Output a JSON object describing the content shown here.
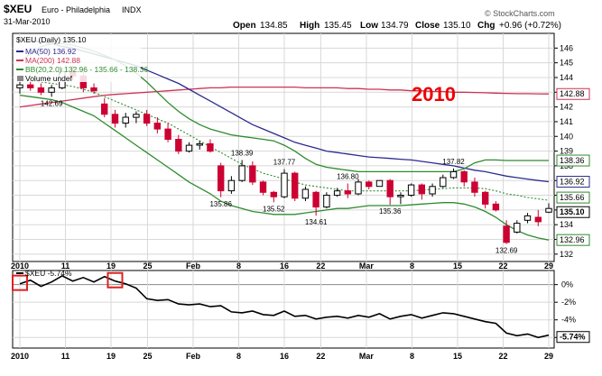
{
  "header": {
    "symbol": "$XEU",
    "name": "Euro - Philadelphia",
    "exchange": "INDX",
    "date": "31-Mar-2010",
    "open_label": "Open",
    "open": "134.85",
    "high_label": "High",
    "high": "135.45",
    "low_label": "Low",
    "low": "134.79",
    "close_label": "Close",
    "close": "135.10",
    "chg_label": "Chg",
    "chg": "+0.96 (+0.72%)",
    "watermark": "© StockCharts.com"
  },
  "legend": {
    "main": "$XEU (Daily) 135.10",
    "ma50": "MA(50) 136.92",
    "ma200": "MA(200) 142.88",
    "bb": "BB(20,2.0) 132.96 - 135.66 - 138.36",
    "volume": "Volume undef"
  },
  "perf_legend": "$XEU -5.74%",
  "annotation_year": "2010",
  "colors": {
    "up": "#000000",
    "down": "#cc0033",
    "ma50": "#2b2b8f",
    "ma200": "#cc3355",
    "bb": "#2e8b2e",
    "highlight": "#dd2222",
    "year": "#ee0000"
  },
  "chart_data": [
    {
      "type": "candlestick",
      "title": "$XEU Euro - Philadelphia INDX",
      "ylim": [
        131.5,
        147
      ],
      "y_ticks": [
        "146",
        "145",
        "144",
        "143",
        "142",
        "141",
        "140",
        "139",
        "138",
        "137",
        "136",
        "135",
        "134",
        "133",
        "132"
      ],
      "x_ticks": [
        "2010",
        "11",
        "19",
        "25",
        "Feb",
        "8",
        "16",
        "22",
        "Mar",
        "8",
        "15",
        "22",
        "29"
      ],
      "right_tags": [
        {
          "label": "142.88",
          "value": 142.88,
          "series": "ma200"
        },
        {
          "label": "138.36",
          "value": 138.36,
          "series": "bb"
        },
        {
          "label": "136.92",
          "value": 136.92,
          "series": "ma50"
        },
        {
          "label": "135.66",
          "value": 135.66,
          "series": "bb"
        },
        {
          "label": "135.10",
          "value": 135.1,
          "series": "price"
        },
        {
          "label": "132.96",
          "value": 132.96,
          "series": "bb"
        }
      ],
      "annotations": [
        {
          "label": "142.69",
          "index": 3,
          "value": 142.69,
          "pos": "below"
        },
        {
          "label": "138.39",
          "index": 21,
          "value": 138.39,
          "pos": "above"
        },
        {
          "label": "137.77",
          "index": 25,
          "value": 137.77,
          "pos": "above"
        },
        {
          "label": "135.86",
          "index": 19,
          "value": 135.86,
          "pos": "below"
        },
        {
          "label": "135.52",
          "index": 24,
          "value": 135.52,
          "pos": "below"
        },
        {
          "label": "136.80",
          "index": 31,
          "value": 136.8,
          "pos": "above"
        },
        {
          "label": "134.61",
          "index": 28,
          "value": 134.61,
          "pos": "below"
        },
        {
          "label": "135.36",
          "index": 35,
          "value": 135.36,
          "pos": "below"
        },
        {
          "label": "137.82",
          "index": 41,
          "value": 137.82,
          "pos": "above"
        },
        {
          "label": "132.69",
          "index": 46,
          "value": 132.69,
          "pos": "below"
        }
      ],
      "candles": [
        [
          143.3,
          143.8,
          142.9,
          143.5
        ],
        [
          143.5,
          143.9,
          143.1,
          143.3
        ],
        [
          143.3,
          143.6,
          142.8,
          143.0
        ],
        [
          143.0,
          143.5,
          142.69,
          143.3
        ],
        [
          143.3,
          144.7,
          143.2,
          144.4
        ],
        [
          144.4,
          144.8,
          143.8,
          144.1
        ],
        [
          144.1,
          144.4,
          143.0,
          143.3
        ],
        [
          143.3,
          143.6,
          142.9,
          143.1
        ],
        [
          142.2,
          142.6,
          141.3,
          141.5
        ],
        [
          141.5,
          141.8,
          140.6,
          140.9
        ],
        [
          140.9,
          141.6,
          140.6,
          141.3
        ],
        [
          141.3,
          141.7,
          140.9,
          141.5
        ],
        [
          141.5,
          141.8,
          140.7,
          140.9
        ],
        [
          140.9,
          141.3,
          140.2,
          140.5
        ],
        [
          140.5,
          140.9,
          139.6,
          139.8
        ],
        [
          139.8,
          140.1,
          138.8,
          139.0
        ],
        [
          139.0,
          139.6,
          138.9,
          139.4
        ],
        [
          139.4,
          139.7,
          139.1,
          139.5
        ],
        [
          139.5,
          139.8,
          138.9,
          139.0
        ],
        [
          138.0,
          138.2,
          135.86,
          136.3
        ],
        [
          136.3,
          137.3,
          136.1,
          137.0
        ],
        [
          137.0,
          138.39,
          136.9,
          138.0
        ],
        [
          138.0,
          138.3,
          136.7,
          136.9
        ],
        [
          136.9,
          137.0,
          136.0,
          136.2
        ],
        [
          136.2,
          136.3,
          135.52,
          135.9
        ],
        [
          135.9,
          137.77,
          135.8,
          137.5
        ],
        [
          137.5,
          137.6,
          135.6,
          135.8
        ],
        [
          135.8,
          136.6,
          135.6,
          136.4
        ],
        [
          136.2,
          136.3,
          134.61,
          135.2
        ],
        [
          135.2,
          136.2,
          135.1,
          136.0
        ],
        [
          136.0,
          136.5,
          135.9,
          136.3
        ],
        [
          136.3,
          136.8,
          135.8,
          136.1
        ],
        [
          136.1,
          137.1,
          136.0,
          136.9
        ],
        [
          136.9,
          137.0,
          136.4,
          136.6
        ],
        [
          136.6,
          137.0,
          136.6,
          137.0
        ],
        [
          137.0,
          137.1,
          135.36,
          135.9
        ],
        [
          135.9,
          136.2,
          135.4,
          136.0
        ],
        [
          136.0,
          136.8,
          135.9,
          136.7
        ],
        [
          136.7,
          136.8,
          135.7,
          136.1
        ],
        [
          136.1,
          136.8,
          135.9,
          136.6
        ],
        [
          136.6,
          137.4,
          136.5,
          137.2
        ],
        [
          137.2,
          137.82,
          137.1,
          137.6
        ],
        [
          137.6,
          137.7,
          136.6,
          136.9
        ],
        [
          136.9,
          137.2,
          135.9,
          136.2
        ],
        [
          136.2,
          136.3,
          135.1,
          135.4
        ],
        [
          135.4,
          135.6,
          134.9,
          135.0
        ],
        [
          133.9,
          134.3,
          132.69,
          132.8
        ],
        [
          133.5,
          134.3,
          133.4,
          134.1
        ],
        [
          134.3,
          134.8,
          134.1,
          134.6
        ],
        [
          134.5,
          135.0,
          133.9,
          134.2
        ],
        [
          134.85,
          135.45,
          134.79,
          135.1
        ]
      ],
      "ma50": [
        146.6,
        146.5,
        146.4,
        146.3,
        146.1,
        146.0,
        145.8,
        145.6,
        145.4,
        145.2,
        145.0,
        144.8,
        144.5,
        144.2,
        143.9,
        143.6,
        143.2,
        142.8,
        142.4,
        142.0,
        141.6,
        141.2,
        140.8,
        140.5,
        140.2,
        139.9,
        139.6,
        139.4,
        139.2,
        139.0,
        138.9,
        138.8,
        138.7,
        138.6,
        138.55,
        138.5,
        138.45,
        138.4,
        138.3,
        138.2,
        138.1,
        138.0,
        137.85,
        137.7,
        137.6,
        137.45,
        137.3,
        137.2,
        137.1,
        137.0,
        136.92
      ],
      "ma200": [
        142.0,
        142.1,
        142.2,
        142.3,
        142.4,
        142.5,
        142.6,
        142.7,
        142.8,
        142.85,
        142.9,
        142.95,
        143.0,
        143.05,
        143.1,
        143.15,
        143.2,
        143.25,
        143.3,
        143.3,
        143.35,
        143.35,
        143.35,
        143.35,
        143.35,
        143.35,
        143.35,
        143.3,
        143.3,
        143.3,
        143.3,
        143.25,
        143.25,
        143.2,
        143.2,
        143.15,
        143.15,
        143.1,
        143.1,
        143.05,
        143.05,
        143.0,
        143.0,
        142.98,
        142.96,
        142.94,
        142.92,
        142.9,
        142.9,
        142.89,
        142.88
      ],
      "bb_upper": [
        145.1,
        145.6,
        146.1,
        146.3,
        146.3,
        146.2,
        146.0,
        145.8,
        145.5,
        145.2,
        144.8,
        144.3,
        143.7,
        143.0,
        142.3,
        141.7,
        141.2,
        140.8,
        140.5,
        140.3,
        140.1,
        140.0,
        139.9,
        139.8,
        139.7,
        139.4,
        139.0,
        138.5,
        138.1,
        137.9,
        137.8,
        137.7,
        137.6,
        137.6,
        137.6,
        137.6,
        137.6,
        137.6,
        137.6,
        137.6,
        137.6,
        137.6,
        137.8,
        138.2,
        138.4,
        138.4,
        138.36,
        138.36,
        138.36,
        138.36,
        138.36
      ],
      "bb_middle": [
        143.9,
        143.8,
        143.7,
        143.6,
        143.5,
        143.4,
        143.2,
        143.0,
        142.7,
        142.4,
        142.1,
        141.8,
        141.5,
        141.2,
        140.9,
        140.5,
        140.1,
        139.7,
        139.3,
        138.9,
        138.5,
        138.1,
        137.8,
        137.5,
        137.3,
        137.1,
        136.9,
        136.7,
        136.6,
        136.5,
        136.4,
        136.3,
        136.3,
        136.3,
        136.3,
        136.3,
        136.3,
        136.3,
        136.35,
        136.4,
        136.45,
        136.5,
        136.5,
        136.5,
        136.45,
        136.3,
        136.1,
        136.0,
        135.85,
        135.75,
        135.66
      ],
      "bb_lower": [
        142.8,
        142.7,
        142.6,
        142.5,
        142.3,
        142.0,
        141.7,
        141.4,
        140.9,
        140.4,
        139.9,
        139.4,
        138.9,
        138.4,
        137.9,
        137.4,
        136.9,
        136.5,
        136.1,
        135.6,
        135.3,
        135.1,
        134.9,
        134.8,
        134.7,
        134.7,
        134.7,
        134.8,
        134.9,
        135.0,
        135.1,
        135.1,
        135.2,
        135.3,
        135.3,
        135.3,
        135.3,
        135.35,
        135.4,
        135.45,
        135.5,
        135.5,
        135.4,
        135.2,
        134.9,
        134.5,
        134.0,
        133.6,
        133.3,
        133.1,
        132.96
      ]
    },
    {
      "type": "line",
      "title": "$XEU -5.74%",
      "ylim": [
        -7.2,
        1.6
      ],
      "y_ticks": [
        "0%",
        "-2%",
        "-4%",
        "-6%"
      ],
      "last_label": "-5.74%",
      "series": [
        {
          "name": "$XEU",
          "values": [
            0.1,
            0.5,
            -0.2,
            0.3,
            1.0,
            0.4,
            0.8,
            0.3,
            0.9,
            0.4,
            0.1,
            -0.4,
            -1.6,
            -1.8,
            -1.7,
            -2.2,
            -2.3,
            -2.2,
            -2.5,
            -2.4,
            -3.1,
            -3.2,
            -3.0,
            -3.4,
            -3.5,
            -3.0,
            -3.6,
            -3.5,
            -3.9,
            -3.7,
            -3.6,
            -3.8,
            -3.5,
            -3.7,
            -3.3,
            -3.9,
            -3.6,
            -3.4,
            -3.8,
            -3.5,
            -3.2,
            -3.3,
            -3.6,
            -3.9,
            -4.2,
            -4.4,
            -5.5,
            -5.8,
            -5.6,
            -6.0,
            -5.74
          ]
        }
      ],
      "highlight_boxes": [
        0,
        9
      ]
    }
  ]
}
